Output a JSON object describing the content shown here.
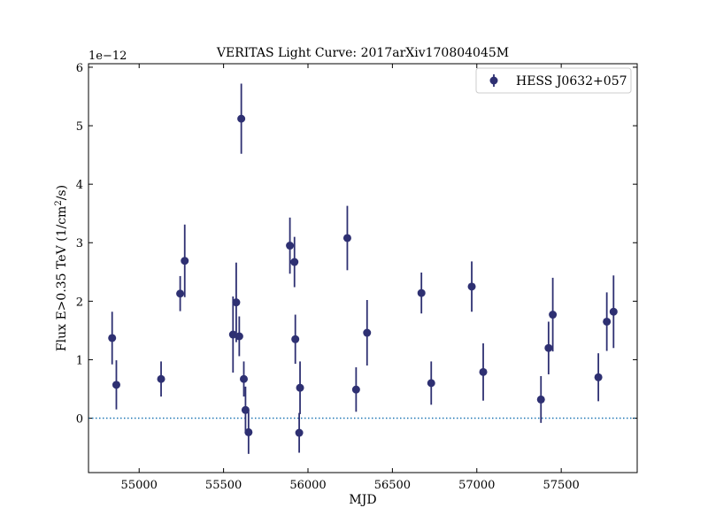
{
  "chart_data": {
    "type": "scatter",
    "title": "VERITAS Light Curve: 2017arXiv170804045M",
    "xlabel": "MJD",
    "ylabel_prefix": "Flux E>0.35 TeV (1/cm",
    "ylabel_sup": "2",
    "ylabel_suffix": "/s)",
    "offset_text": "1e−12",
    "xlim": [
      54700,
      57950
    ],
    "ylim": [
      -0.93,
      6.06
    ],
    "xticks": [
      55000,
      55500,
      56000,
      56500,
      57000,
      57500
    ],
    "yticks": [
      0,
      1,
      2,
      3,
      4,
      5,
      6
    ],
    "grid": false,
    "legend_position": "top-right",
    "reference_line": {
      "y": 0,
      "style": "dotted",
      "color": "#1f77b4"
    },
    "colors": {
      "series": "#2e3072"
    },
    "series": [
      {
        "name": "HESS J0632+057",
        "marker": "circle-errorbar",
        "points": [
          {
            "x": 54840,
            "y": 1.37,
            "err": 0.45
          },
          {
            "x": 54865,
            "y": 0.57,
            "err": 0.42
          },
          {
            "x": 55130,
            "y": 0.67,
            "err": 0.3
          },
          {
            "x": 55243,
            "y": 2.13,
            "err": 0.3
          },
          {
            "x": 55270,
            "y": 2.69,
            "err": 0.62
          },
          {
            "x": 55556,
            "y": 1.43,
            "err": 0.65
          },
          {
            "x": 55575,
            "y": 1.98,
            "err": 0.68
          },
          {
            "x": 55593,
            "y": 1.4,
            "err": 0.34
          },
          {
            "x": 55605,
            "y": 5.12,
            "err": 0.6
          },
          {
            "x": 55620,
            "y": 0.67,
            "err": 0.3
          },
          {
            "x": 55630,
            "y": 0.14,
            "err": 0.4
          },
          {
            "x": 55648,
            "y": -0.24,
            "err": 0.37
          },
          {
            "x": 55893,
            "y": 2.95,
            "err": 0.48
          },
          {
            "x": 55920,
            "y": 2.67,
            "err": 0.43
          },
          {
            "x": 55925,
            "y": 1.35,
            "err": 0.42
          },
          {
            "x": 55948,
            "y": -0.25,
            "err": 0.34
          },
          {
            "x": 55953,
            "y": 0.52,
            "err": 0.45
          },
          {
            "x": 56233,
            "y": 3.08,
            "err": 0.55
          },
          {
            "x": 56285,
            "y": 0.49,
            "err": 0.38
          },
          {
            "x": 56350,
            "y": 1.46,
            "err": 0.56
          },
          {
            "x": 56672,
            "y": 2.14,
            "err": 0.35
          },
          {
            "x": 56730,
            "y": 0.6,
            "err": 0.37
          },
          {
            "x": 56970,
            "y": 2.25,
            "err": 0.43
          },
          {
            "x": 57038,
            "y": 0.79,
            "err": 0.49
          },
          {
            "x": 57380,
            "y": 0.32,
            "err": 0.4
          },
          {
            "x": 57425,
            "y": 1.2,
            "err": 0.45
          },
          {
            "x": 57450,
            "y": 1.77,
            "err": 0.63
          },
          {
            "x": 57720,
            "y": 0.7,
            "err": 0.41
          },
          {
            "x": 57770,
            "y": 1.65,
            "err": 0.5
          },
          {
            "x": 57810,
            "y": 1.82,
            "err": 0.62
          }
        ]
      }
    ]
  }
}
